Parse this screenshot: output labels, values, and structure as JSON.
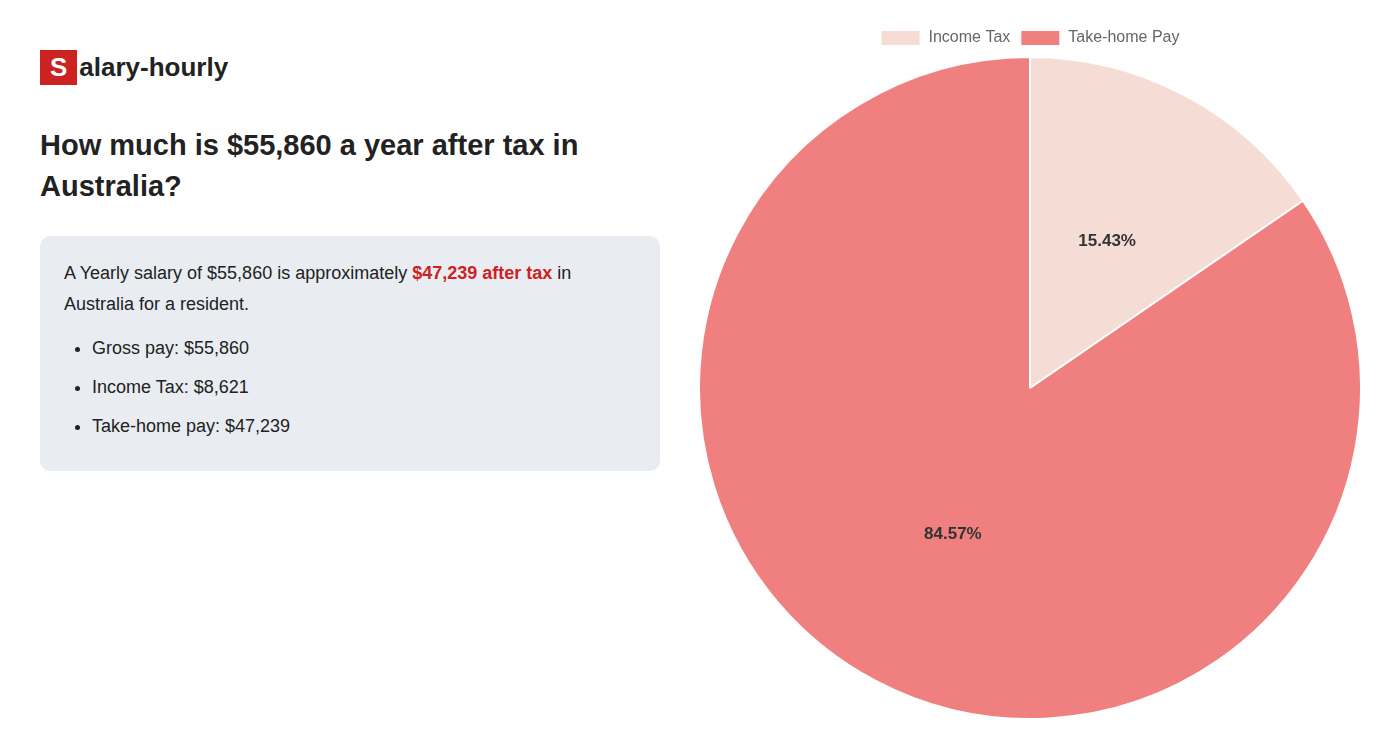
{
  "chart_data": {
    "type": "pie",
    "title": "How much is $55,860 a year after tax in\nAustralia?",
    "categories": [
      "Income Tax",
      "Take-home Pay"
    ],
    "values": [
      15.43,
      84.57
    ],
    "value_labels": [
      "15.43%",
      "84.57%"
    ],
    "colors": [
      "#f5ddd5",
      "#f08080"
    ],
    "data_labels": true,
    "legend": "top",
    "annotations": [
      {
        "text": "S",
        "color": "#cc2222"
      },
      {
        "text": "alary-hourly"
      },
      {
        "text": "A Yearly salary of $55,860 is approximately "
      },
      {
        "text": "$47,239 after tax",
        "color": "#cc2222"
      },
      {
        "text": " in"
      },
      {
        "text": "Australia for a resident."
      },
      {
        "text": "Gross pay: $55,860"
      },
      {
        "text": "Income Tax: $8,621"
      },
      {
        "text": "Take-home pay: $47,239"
      }
    ]
  }
}
